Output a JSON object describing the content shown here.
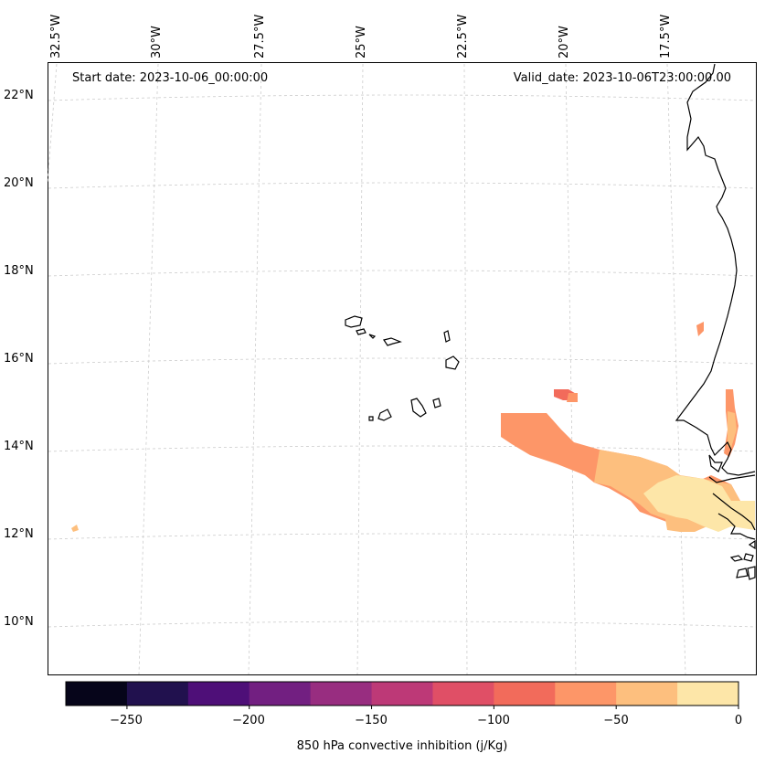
{
  "map": {
    "start_date": "Start date: 2023-10-06_00:00:00",
    "valid_date": "Valid_date: 2023-10-06T23:00:00.00",
    "lon_labels": [
      "32.5°W",
      "30°W",
      "27.5°W",
      "25°W",
      "22.5°W",
      "20°W",
      "17.5°W"
    ],
    "lat_labels": [
      "22°N",
      "20°N",
      "18°N",
      "16°N",
      "14°N",
      "12°N",
      "10°N"
    ],
    "gridlines": true,
    "coastline_color": "#000000",
    "regions": [
      "Cape Verde Islands",
      "West African coast (Senegal / Gambia / Guinea-Bissau)"
    ]
  },
  "colorbar": {
    "title": "850 hPa convective inhibition (j/Kg)",
    "tick_labels": [
      "−250",
      "−200",
      "−150",
      "−100",
      "−50",
      "0"
    ],
    "range": [
      -275,
      0
    ],
    "levels": [
      -275,
      -250,
      -225,
      -200,
      -175,
      -150,
      -125,
      -100,
      -75,
      -50,
      -25,
      0
    ],
    "colors": [
      "#06051a",
      "#21114e",
      "#4e0f78",
      "#721f81",
      "#982d80",
      "#bd3977",
      "#e04f66",
      "#f26b5b",
      "#fd9668",
      "#fdbf7e",
      "#fde6a8"
    ]
  }
}
